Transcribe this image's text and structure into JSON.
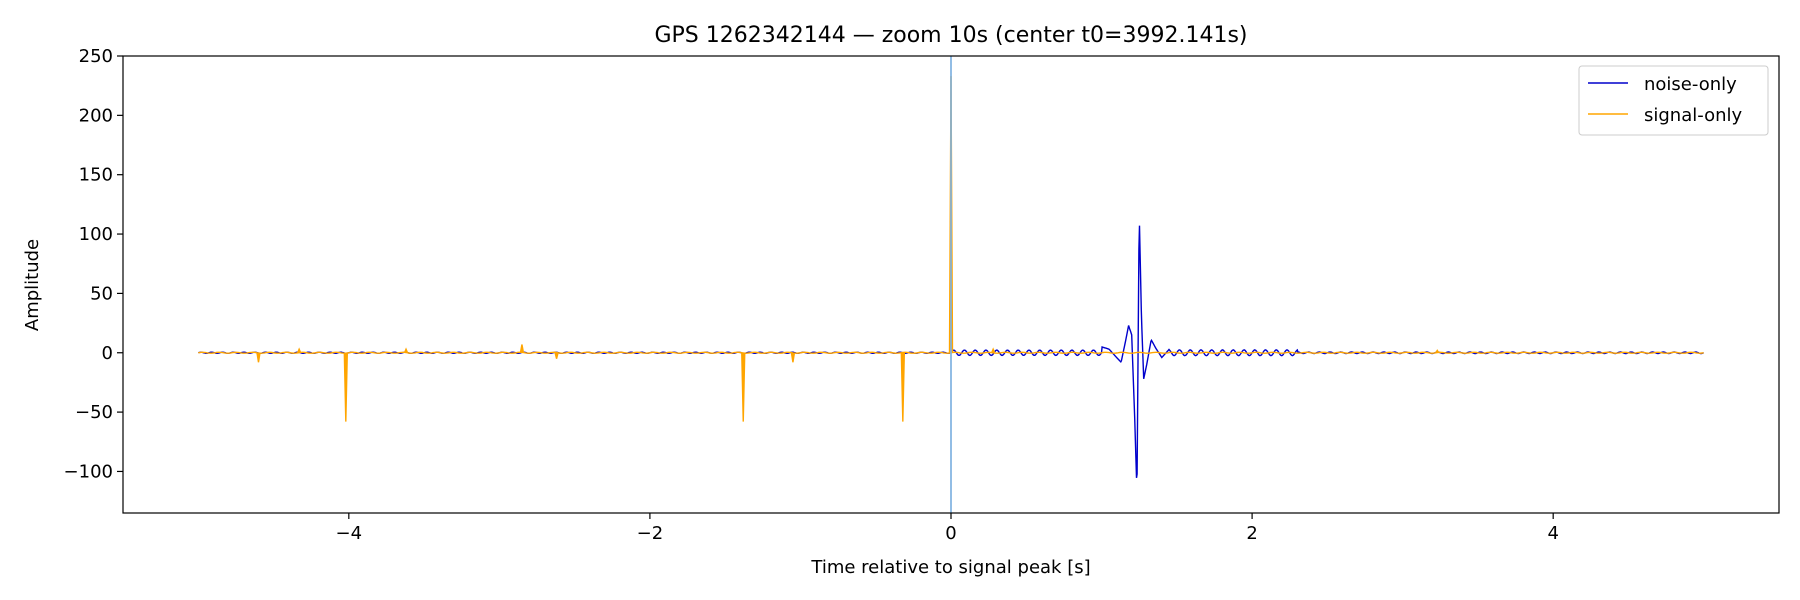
{
  "chart_data": {
    "type": "line",
    "title": "GPS 1262342144 — zoom 10s (center t0=3992.141s)",
    "xlabel": "Time relative to signal peak [s]",
    "ylabel": "Amplitude",
    "xlim": [
      -5.5,
      5.5
    ],
    "ylim": [
      -135,
      250
    ],
    "xticks": [
      -4,
      -2,
      0,
      2,
      4
    ],
    "xtick_labels": [
      "−4",
      "−2",
      "0",
      "2",
      "4"
    ],
    "yticks": [
      -100,
      -50,
      0,
      50,
      100,
      150,
      200,
      250
    ],
    "ytick_labels": [
      "−100",
      "−50",
      "0",
      "50",
      "100",
      "150",
      "200",
      "250"
    ],
    "grid": false,
    "legend_position": "top-right",
    "vline": {
      "x": 0,
      "color": "#7fb2e0"
    },
    "series": [
      {
        "name": "noise-only",
        "color": "#0000cc",
        "note": "oscillation ~0.5 amplitude on [-5,0], ~2-3 amplitude ringing on [0,2.2], burst near t=1.23",
        "x": [
          -5.0,
          -2.0,
          -0.05,
          0.0,
          0.1,
          0.3,
          0.5,
          0.7,
          0.9,
          1.0,
          1.05,
          1.1,
          1.13,
          1.16,
          1.18,
          1.2,
          1.22,
          1.235,
          1.25,
          1.265,
          1.28,
          1.3,
          1.33,
          1.36,
          1.4,
          1.45,
          1.5,
          1.7,
          1.9,
          2.1,
          2.3,
          3.0,
          4.0,
          5.0
        ],
        "y": [
          0,
          0,
          0,
          0,
          1,
          2,
          -2,
          2,
          -3,
          5,
          3,
          -4,
          -8,
          10,
          23,
          15,
          -55,
          -118,
          119,
          30,
          -22,
          -10,
          11,
          4,
          -4,
          3,
          2,
          -2,
          2,
          -1,
          0,
          0,
          0,
          0
        ]
      },
      {
        "name": "signal-only",
        "color": "#ffa500",
        "spikes": [
          {
            "x": -4.6,
            "y": -8
          },
          {
            "x": -4.33,
            "y": 3
          },
          {
            "x": -4.02,
            "y": -58
          },
          {
            "x": -3.62,
            "y": 3
          },
          {
            "x": -2.85,
            "y": 7
          },
          {
            "x": -2.62,
            "y": -5
          },
          {
            "x": -1.38,
            "y": -58
          },
          {
            "x": -1.05,
            "y": -8
          },
          {
            "x": -0.32,
            "y": -58
          },
          {
            "x": 0.0,
            "y": 233
          },
          {
            "x": 0.28,
            "y": 3
          },
          {
            "x": 3.23,
            "y": 2
          }
        ]
      }
    ]
  }
}
